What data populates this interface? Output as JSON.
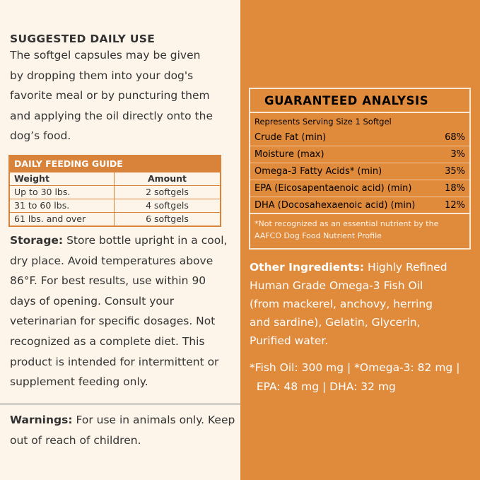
{
  "left": {
    "heading": "SUGGESTED DAILY USE",
    "intro_lines": [
      "The softgel capsules may be given",
      "by dropping them into your dog's",
      "favorite meal or by puncturing them",
      "and applying the oil directly onto the",
      "dog’s food."
    ],
    "feeding_guide": {
      "title": "DAILY FEEDING GUIDE",
      "headers": [
        "Weight",
        "Amount"
      ],
      "rows": [
        [
          "Up to 30 lbs.",
          "2 softgels"
        ],
        [
          "31 to 60 lbs.",
          "4 softgels"
        ],
        [
          "61 lbs. and over",
          "6 softgels"
        ]
      ]
    },
    "storage_label": "Storage:",
    "storage_lines": [
      " Store bottle upright in a cool,",
      "dry place. Avoid temperatures above",
      "86°F.  For best results, use within 90",
      "days of opening. Consult your",
      "veterinarian for specific dosages. Not",
      "recognized as a complete diet. This",
      "product is intended for intermittent or",
      "supplement feeding only."
    ],
    "warnings_label": "Warnings:",
    "warnings_lines": [
      " For use in animals only. Keep",
      "out of reach of children."
    ]
  },
  "right": {
    "analysis": {
      "title": "GUARANTEED ANALYSIS",
      "serving": "Represents Serving Size 1 Softgel",
      "rows": [
        [
          "Crude Fat (min)",
          "68%"
        ],
        [
          "Moisture (max)",
          "3%"
        ],
        [
          "Omega-3 Fatty Acids* (min)",
          "35%"
        ],
        [
          "EPA (Eicosapentaenoic acid) (min)",
          "18%"
        ],
        [
          "DHA (Docosahexaenoic acid) (min)",
          "12%"
        ]
      ],
      "note_lines": [
        "*Not recognized as an essential nutrient by the",
        "AAFCO Dog Food Nutrient Profile"
      ]
    },
    "ingredients_label": "Other Ingredients:",
    "ingredients_lines": [
      " Highly Refined",
      "Human Grade Omega-3 Fish Oil",
      "(from mackerel, anchovy, herring",
      "and sardine), Gelatin, Glycerin,",
      "Purified water."
    ],
    "footnote_lines": [
      "*Fish Oil: 300 mg | *Omega-3: 82 mg |",
      "  EPA: 48 mg | DHA: 32 mg"
    ]
  },
  "colors": {
    "cream": "#fdf5ea",
    "orange": "#e08a3c",
    "table_orange": "#d9823a"
  }
}
